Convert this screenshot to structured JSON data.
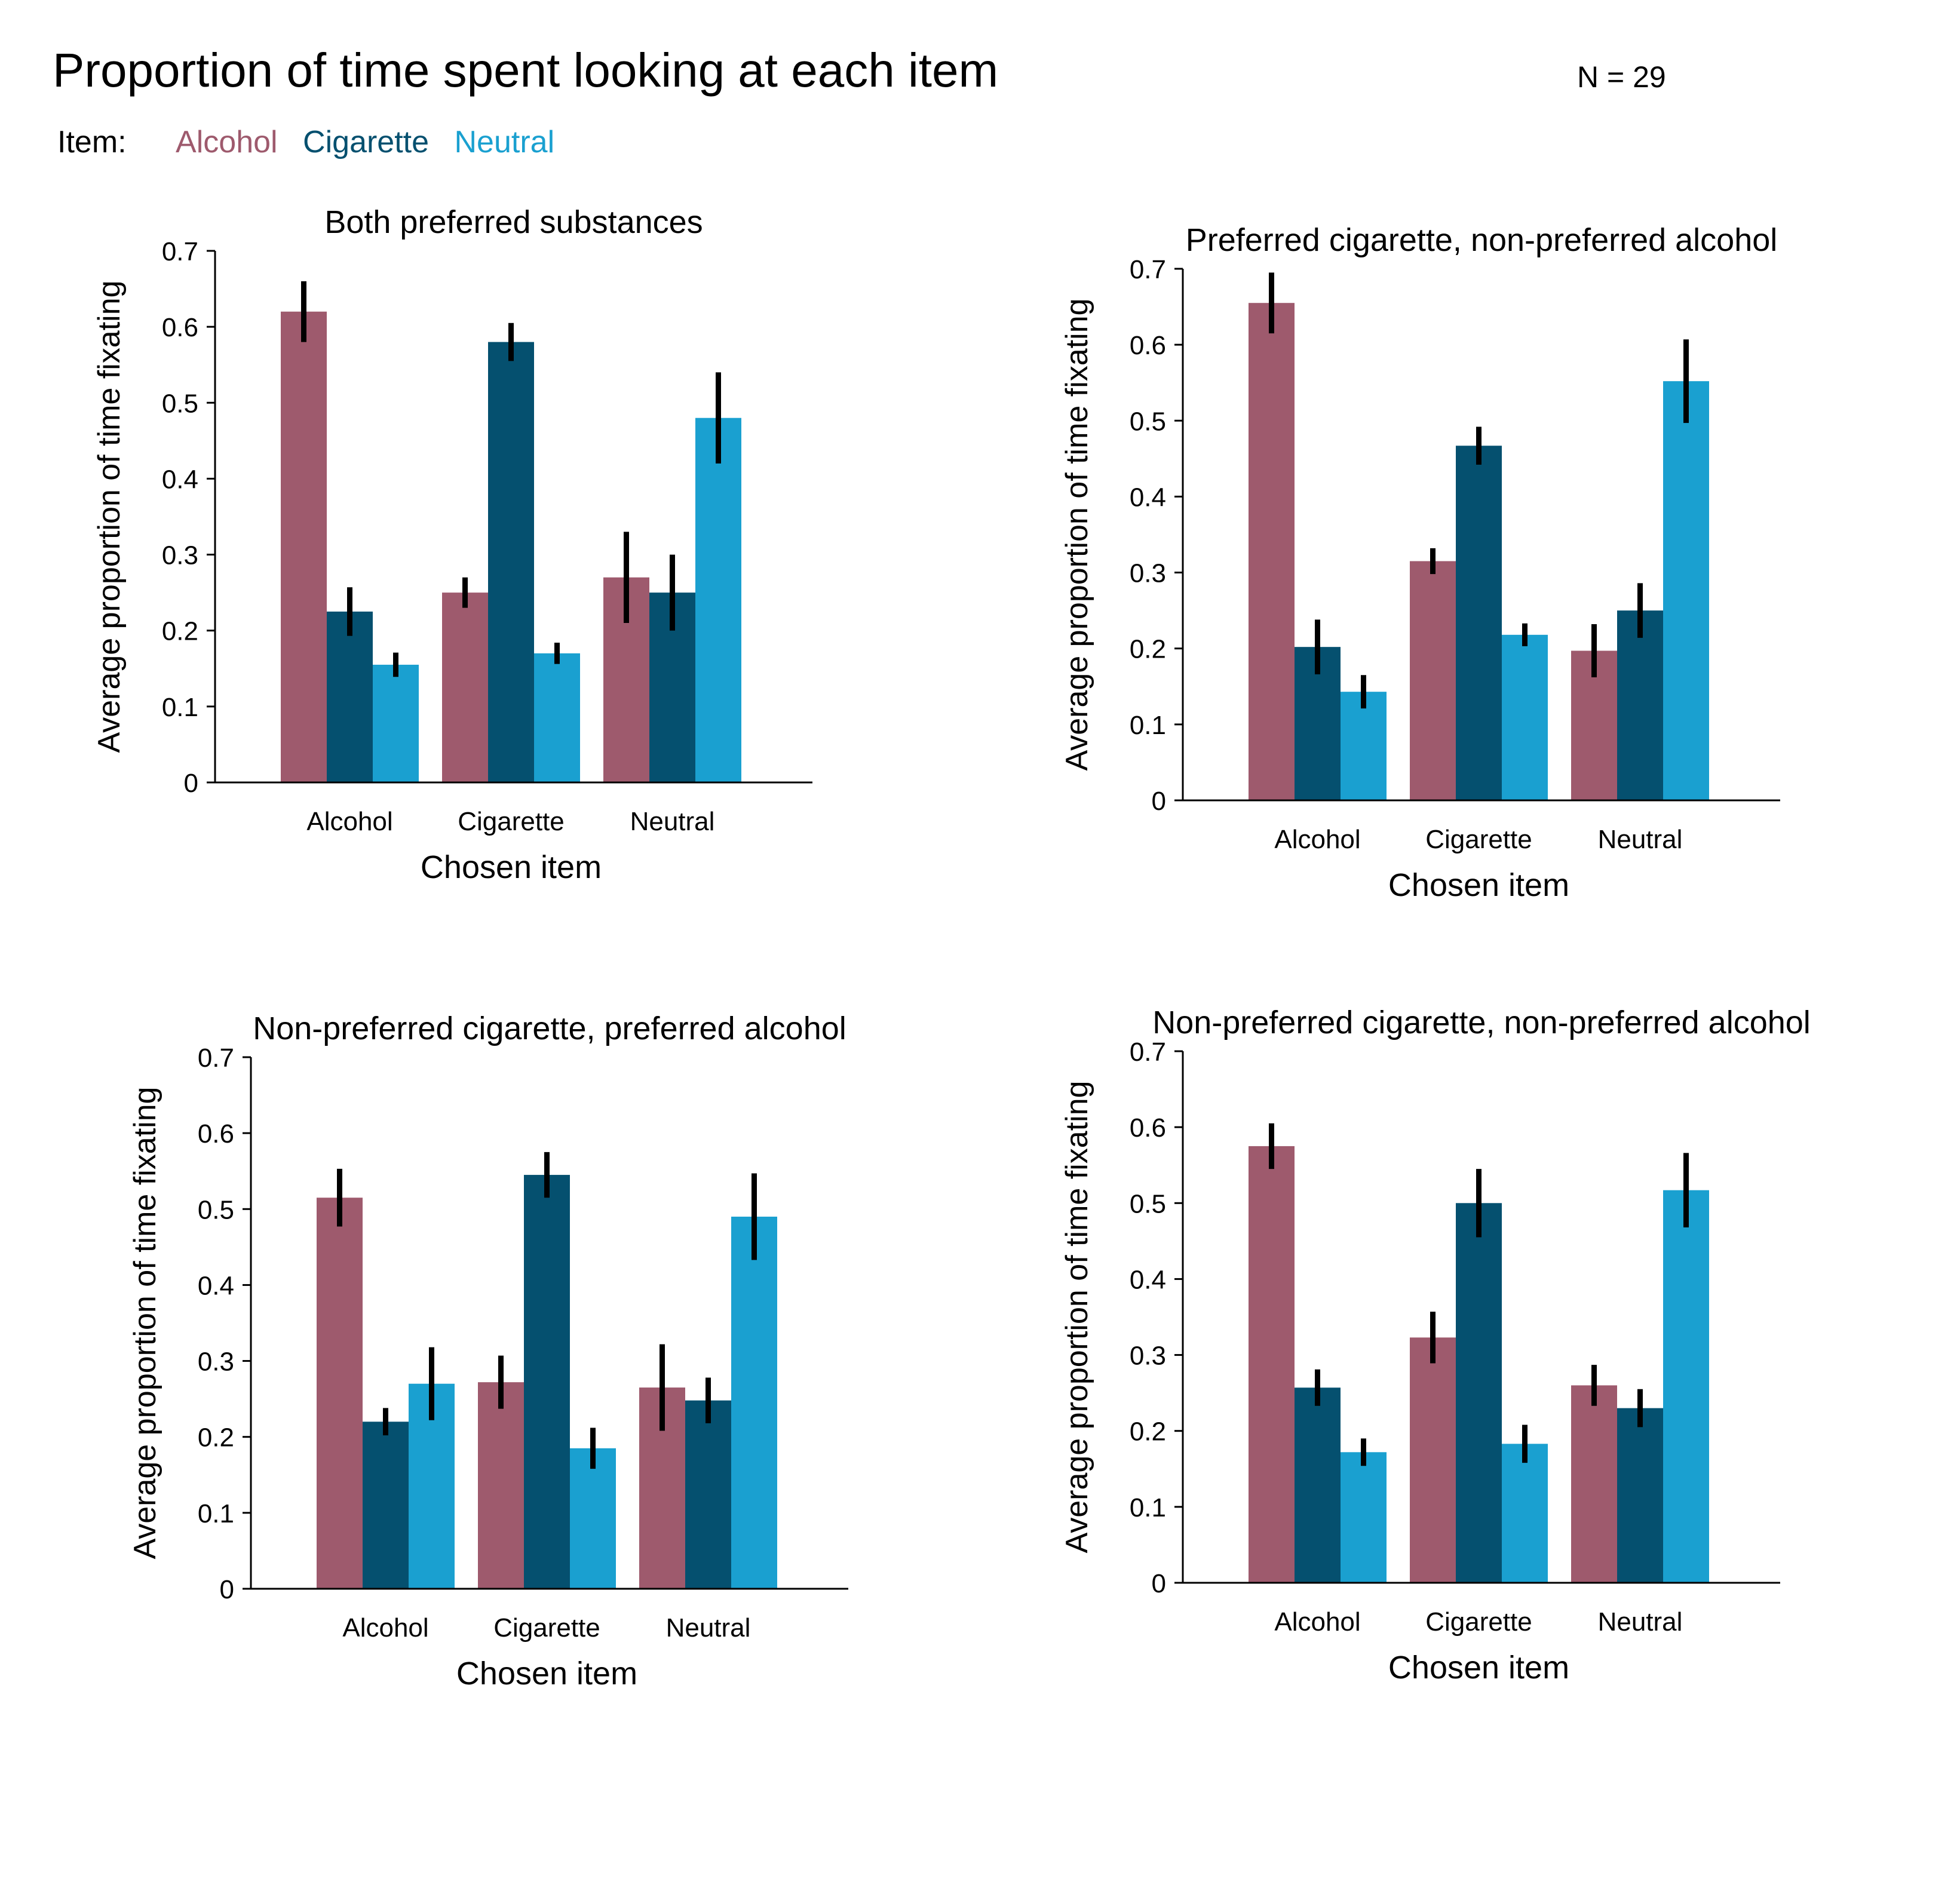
{
  "title": "Proportion of time spent looking at each item",
  "n_label": "N = 29",
  "legend": {
    "label": "Item:",
    "entries": [
      {
        "name": "Alcohol",
        "color": "#9e5a6d"
      },
      {
        "name": "Cigarette",
        "color": "#05506f"
      },
      {
        "name": "Neutral",
        "color": "#1aa0d0"
      }
    ]
  },
  "chart_data": [
    {
      "type": "bar",
      "title": "Both preferred substances",
      "xlabel": "Chosen item",
      "ylabel": "Average proportion of time fixating",
      "ylim": [
        0,
        0.7
      ],
      "yticks": [
        "0",
        "0.1",
        "0.2",
        "0.3",
        "0.4",
        "0.5",
        "0.6",
        "0.7"
      ],
      "categories": [
        "Alcohol",
        "Cigarette",
        "Neutral"
      ],
      "series": [
        {
          "name": "Alcohol",
          "values": [
            0.62,
            0.25,
            0.27
          ],
          "errors": [
            0.04,
            0.02,
            0.06
          ]
        },
        {
          "name": "Cigarette",
          "values": [
            0.225,
            0.58,
            0.25
          ],
          "errors": [
            0.032,
            0.025,
            0.05
          ]
        },
        {
          "name": "Neutral",
          "values": [
            0.155,
            0.17,
            0.48
          ],
          "errors": [
            0.016,
            0.014,
            0.06
          ]
        }
      ]
    },
    {
      "type": "bar",
      "title": "Preferred cigarette, non-preferred alcohol",
      "xlabel": "Chosen item",
      "ylabel": "Average proportion of time fixating",
      "ylim": [
        0,
        0.7
      ],
      "yticks": [
        "0",
        "0.1",
        "0.2",
        "0.3",
        "0.4",
        "0.5",
        "0.6",
        "0.7"
      ],
      "categories": [
        "Alcohol",
        "Cigarette",
        "Neutral"
      ],
      "series": [
        {
          "name": "Alcohol",
          "values": [
            0.655,
            0.315,
            0.197
          ],
          "errors": [
            0.04,
            0.017,
            0.035
          ]
        },
        {
          "name": "Cigarette",
          "values": [
            0.202,
            0.467,
            0.25
          ],
          "errors": [
            0.036,
            0.025,
            0.036
          ]
        },
        {
          "name": "Neutral",
          "values": [
            0.143,
            0.218,
            0.552
          ],
          "errors": [
            0.022,
            0.015,
            0.055
          ]
        }
      ]
    },
    {
      "type": "bar",
      "title": "Non-preferred cigarette, preferred alcohol",
      "xlabel": "Chosen item",
      "ylabel": "Average proportion of time fixating",
      "ylim": [
        0,
        0.7
      ],
      "yticks": [
        "0",
        "0.1",
        "0.2",
        "0.3",
        "0.4",
        "0.5",
        "0.6",
        "0.7"
      ],
      "categories": [
        "Alcohol",
        "Cigarette",
        "Neutral"
      ],
      "series": [
        {
          "name": "Alcohol",
          "values": [
            0.515,
            0.272,
            0.265
          ],
          "errors": [
            0.038,
            0.035,
            0.057
          ]
        },
        {
          "name": "Cigarette",
          "values": [
            0.22,
            0.545,
            0.248
          ],
          "errors": [
            0.018,
            0.03,
            0.03
          ]
        },
        {
          "name": "Neutral",
          "values": [
            0.27,
            0.185,
            0.49
          ],
          "errors": [
            0.048,
            0.027,
            0.057
          ]
        }
      ]
    },
    {
      "type": "bar",
      "title": "Non-preferred cigarette, non-preferred alcohol",
      "xlabel": "Chosen item",
      "ylabel": "Average proportion of time fixating",
      "ylim": [
        0,
        0.7
      ],
      "yticks": [
        "0",
        "0.1",
        "0.2",
        "0.3",
        "0.4",
        "0.5",
        "0.6",
        "0.7"
      ],
      "categories": [
        "Alcohol",
        "Cigarette",
        "Neutral"
      ],
      "series": [
        {
          "name": "Alcohol",
          "values": [
            0.575,
            0.323,
            0.26
          ],
          "errors": [
            0.03,
            0.034,
            0.027
          ]
        },
        {
          "name": "Cigarette",
          "values": [
            0.257,
            0.5,
            0.23
          ],
          "errors": [
            0.024,
            0.045,
            0.025
          ]
        },
        {
          "name": "Neutral",
          "values": [
            0.172,
            0.183,
            0.517
          ],
          "errors": [
            0.018,
            0.025,
            0.049
          ]
        }
      ]
    }
  ]
}
